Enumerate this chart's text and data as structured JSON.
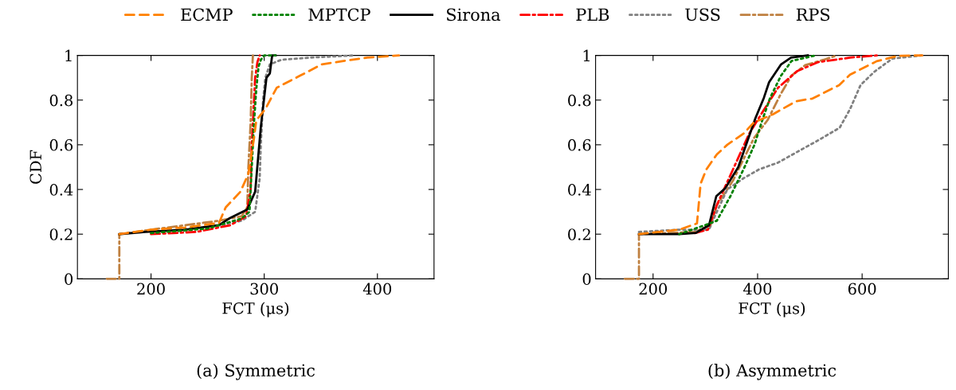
{
  "chart_data": [
    {
      "type": "line",
      "title": "(a) Symmetric",
      "xlabel": "FCT (μs)",
      "ylabel": "CDF",
      "xlim": [
        135,
        450
      ],
      "xticks": [
        200,
        300,
        400
      ],
      "ylim": [
        0,
        1
      ],
      "yticks": [
        0,
        0.2,
        0.4,
        0.6,
        0.8,
        1
      ],
      "grid": false,
      "legend": "top",
      "marker": "none",
      "series": [
        {
          "name": "ECMP",
          "color": "#ff8000",
          "line_style": "dashed",
          "x": [
            172,
            200,
            230,
            260,
            266,
            279,
            286,
            291,
            293,
            301,
            311,
            332,
            351,
            370,
            391,
            419
          ],
          "values": [
            0.2,
            0.22,
            0.23,
            0.25,
            0.32,
            0.39,
            0.47,
            0.63,
            0.71,
            0.76,
            0.855,
            0.91,
            0.96,
            0.975,
            0.99,
            1.0
          ]
        },
        {
          "name": "MPTCP",
          "color": "#008000",
          "line_style": "dotted",
          "x": [
            200,
            250,
            280,
            287,
            289,
            291,
            293,
            295,
            297,
            300,
            310
          ],
          "values": [
            0.205,
            0.225,
            0.27,
            0.3,
            0.5,
            0.7,
            0.85,
            0.95,
            0.98,
            1.0,
            1.0
          ]
        },
        {
          "name": "Sirona",
          "color": "#000000",
          "line_style": "solid",
          "x": [
            172,
            195,
            230,
            260,
            269,
            285,
            292,
            297,
            302,
            305,
            307,
            310
          ],
          "values": [
            0.2,
            0.21,
            0.22,
            0.24,
            0.27,
            0.31,
            0.39,
            0.68,
            0.9,
            0.92,
            1.0,
            1.0
          ]
        },
        {
          "name": "PLB",
          "color": "#ff0000",
          "line_style": "dashdot",
          "x": [
            200,
            240,
            270,
            284,
            288,
            289,
            291,
            292,
            294,
            296
          ],
          "values": [
            0.2,
            0.21,
            0.24,
            0.28,
            0.4,
            0.6,
            0.8,
            0.9,
            0.97,
            1.0
          ]
        },
        {
          "name": "USS",
          "color": "#808080",
          "line_style": "dotted",
          "x": [
            200,
            250,
            280,
            292,
            296,
            297,
            299,
            301,
            305,
            315,
            340,
            380
          ],
          "values": [
            0.21,
            0.23,
            0.26,
            0.3,
            0.45,
            0.6,
            0.8,
            0.9,
            0.96,
            0.98,
            0.99,
            1.0
          ]
        },
        {
          "name": "RPS",
          "color": "#bf8040",
          "line_style": "dashdot",
          "x": [
            161,
            172,
            172,
            200,
            230,
            260,
            280,
            285,
            286,
            288,
            289,
            290
          ],
          "values": [
            0,
            0,
            0.2,
            0.22,
            0.24,
            0.26,
            0.28,
            0.32,
            0.5,
            0.7,
            0.9,
            1.0
          ]
        }
      ]
    },
    {
      "type": "line",
      "title": "(b) Asymmetric",
      "xlabel": "FCT (μs)",
      "xlim": [
        90,
        765
      ],
      "xticks": [
        200,
        400,
        600
      ],
      "ylim": [
        0,
        1
      ],
      "yticks": [
        0,
        0.2,
        0.4,
        0.6,
        0.8,
        1
      ],
      "grid": false,
      "legend": false,
      "marker": "none",
      "series": [
        {
          "color": "#ff8000",
          "line_style": "dashed",
          "x": [
            173,
            250,
            284,
            291,
            302,
            322,
            342,
            373,
            393,
            429,
            474,
            505,
            556,
            577,
            628,
            669,
            715
          ],
          "values": [
            0.2,
            0.22,
            0.248,
            0.426,
            0.49,
            0.557,
            0.6,
            0.65,
            0.7,
            0.736,
            0.795,
            0.807,
            0.867,
            0.914,
            0.974,
            0.998,
            1.0
          ]
        },
        {
          "color": "#008000",
          "line_style": "dotted",
          "x": [
            250,
            299,
            322,
            348,
            373,
            394,
            409,
            424,
            445,
            465,
            511
          ],
          "values": [
            0.2,
            0.24,
            0.26,
            0.37,
            0.49,
            0.6,
            0.71,
            0.81,
            0.91,
            0.975,
            1.0
          ]
        },
        {
          "color": "#000000",
          "line_style": "solid",
          "x": [
            173,
            250,
            282,
            307,
            321,
            338,
            363,
            381,
            396,
            412,
            422,
            445,
            464,
            496
          ],
          "values": [
            0.2,
            0.2,
            0.206,
            0.24,
            0.37,
            0.405,
            0.5,
            0.62,
            0.72,
            0.81,
            0.88,
            0.96,
            0.99,
            1.0
          ]
        },
        {
          "color": "#ff0000",
          "line_style": "dashdot",
          "x": [
            280,
            305,
            322,
            353,
            384,
            409,
            439,
            476,
            516,
            577,
            628
          ],
          "values": [
            0.205,
            0.22,
            0.33,
            0.49,
            0.65,
            0.745,
            0.855,
            0.93,
            0.97,
            0.99,
            1.0
          ]
        },
        {
          "color": "#808080",
          "line_style": "dotted",
          "x": [
            173,
            250,
            307,
            322,
            342,
            373,
            403,
            439,
            485,
            516,
            557,
            577,
            597,
            623,
            658,
            715
          ],
          "values": [
            0.21,
            0.22,
            0.22,
            0.3,
            0.4,
            0.45,
            0.49,
            0.52,
            0.58,
            0.62,
            0.676,
            0.76,
            0.867,
            0.926,
            0.986,
            1.0
          ]
        },
        {
          "color": "#bf8040",
          "line_style": "dashdot",
          "x": [
            146,
            173,
            173,
            280,
            310,
            322,
            353,
            393,
            419,
            445,
            465,
            491,
            526,
            552
          ],
          "values": [
            0,
            0,
            0.2,
            0.21,
            0.24,
            0.33,
            0.44,
            0.63,
            0.71,
            0.83,
            0.91,
            0.956,
            0.98,
            1.0
          ]
        }
      ]
    }
  ]
}
